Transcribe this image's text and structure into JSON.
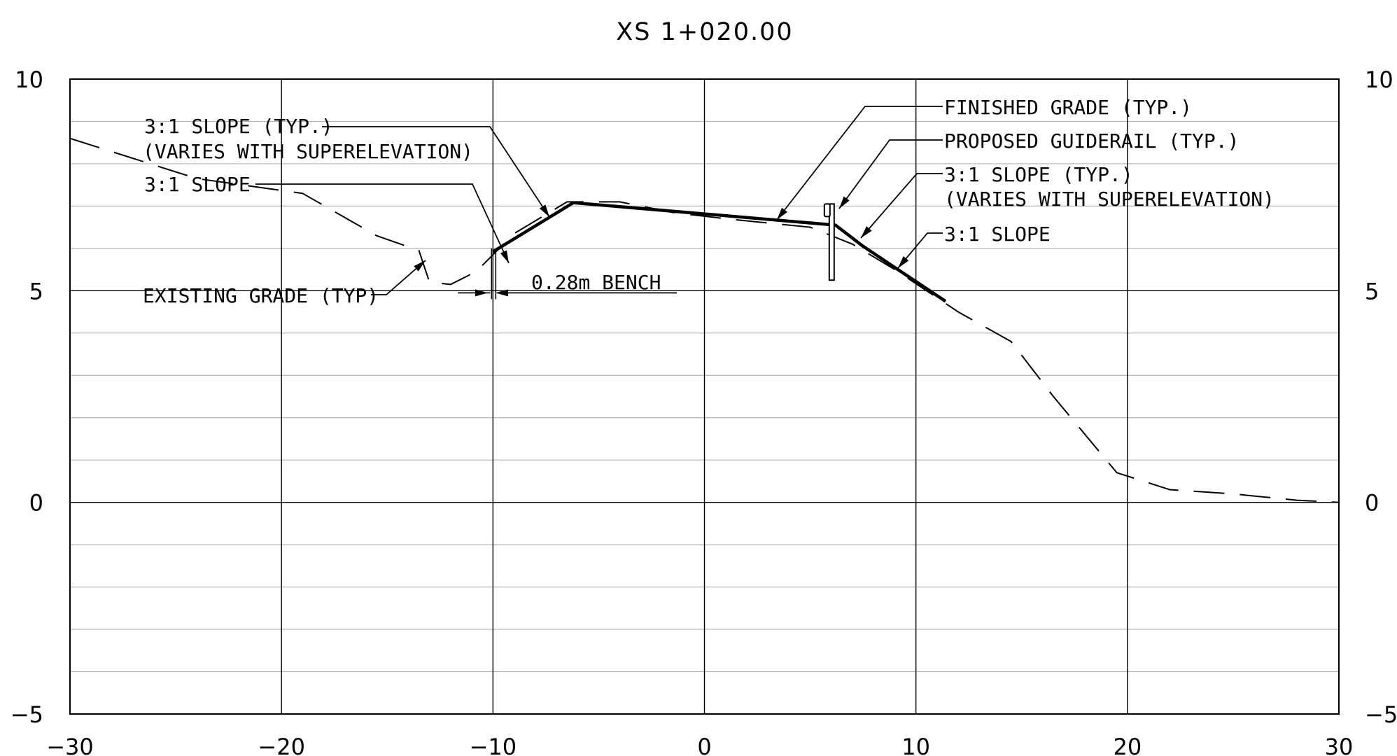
{
  "chart_data": {
    "type": "line",
    "title": "XS 1+020.00",
    "xlim": [
      -30,
      30
    ],
    "ylim": [
      -5,
      10
    ],
    "x_ticks": [
      "−30",
      "−20",
      "−10",
      "0",
      "10",
      "20",
      "30"
    ],
    "y_ticks_left": [
      "10",
      "5",
      "0",
      "−5"
    ],
    "y_ticks_right": [
      "10",
      "5",
      "0",
      "−5"
    ],
    "grid": "on",
    "series": [
      {
        "name": "EXISTING GRADE (TYP)",
        "style": "dashed",
        "color": "#000000",
        "x": [
          -30,
          -24,
          -19,
          -15.5,
          -13.5,
          -13.2,
          -13.0,
          -12.0,
          -10.8,
          -9.0,
          -6.5,
          -4.0,
          -1.5,
          1.0,
          3.0,
          5.0,
          7.0,
          9.0,
          10.5,
          12.0,
          14.5,
          16.5,
          19.5,
          22.0,
          25.0,
          28.0,
          30.0
        ],
        "y": [
          8.6,
          7.65,
          7.3,
          6.3,
          5.95,
          5.5,
          5.2,
          5.15,
          5.45,
          6.35,
          7.1,
          7.1,
          6.85,
          6.7,
          6.6,
          6.5,
          6.1,
          5.5,
          5.0,
          4.5,
          3.8,
          2.5,
          0.7,
          0.3,
          0.2,
          0.05,
          0.0
        ]
      },
      {
        "name": "FINISHED GRADE (TYP.)",
        "style": "solid",
        "color": "#000000",
        "x": [
          -10.0,
          -6.2,
          6.2,
          7.5,
          9.0,
          10.5,
          11.4
        ],
        "y": [
          5.92,
          7.08,
          6.55,
          6.05,
          5.55,
          5.05,
          4.75
        ]
      }
    ],
    "guiderail": {
      "x": 6.0,
      "post_bottom": 5.25,
      "post_top": 7.05
    },
    "bench": {
      "x": -10.0,
      "width_label": "0.28m BENCH"
    },
    "annotations": [
      "3:1 SLOPE (TYP.)",
      "(VARIES WITH SUPERELEVATION)",
      "3:1 SLOPE",
      "EXISTING GRADE (TYP)",
      "0.28m BENCH",
      "FINISHED GRADE (TYP.)",
      "PROPOSED GUIDERAIL (TYP.)",
      "3:1 SLOPE (TYP.)",
      "(VARIES WITH SUPERELEVATION)",
      "3:1 SLOPE"
    ]
  }
}
